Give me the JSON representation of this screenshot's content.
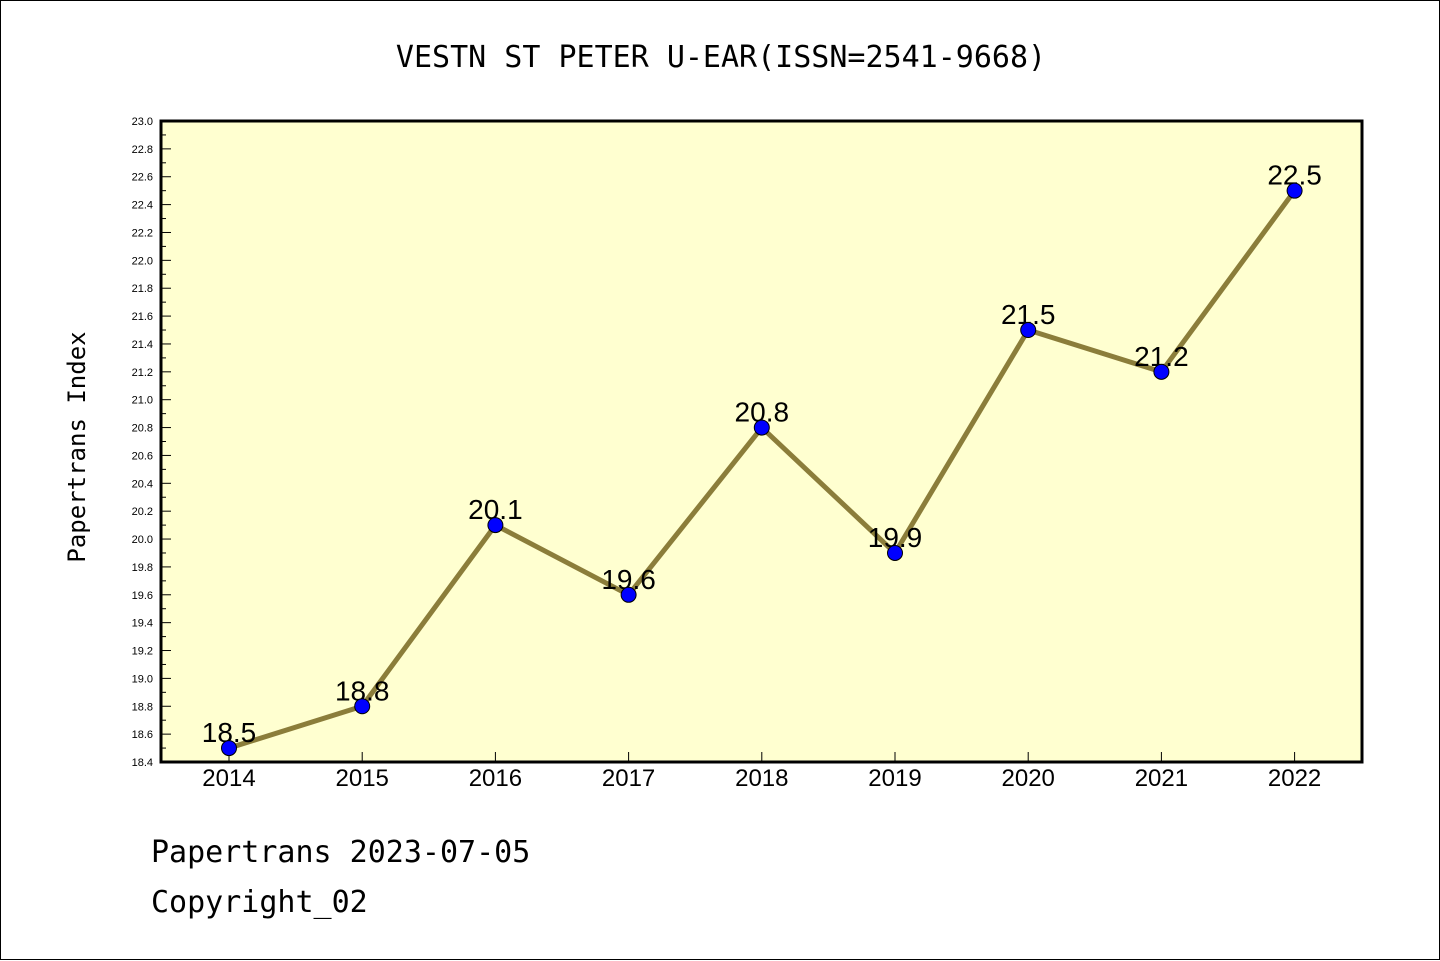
{
  "chart_data": {
    "type": "line",
    "title": "VESTN ST PETER U-EAR(ISSN=2541-9668)",
    "xlabel": "",
    "ylabel": "Papertrans Index",
    "x": [
      "2014",
      "2015",
      "2016",
      "2017",
      "2018",
      "2019",
      "2020",
      "2021",
      "2022"
    ],
    "series": [
      {
        "values": [
          18.5,
          18.8,
          20.1,
          19.6,
          20.8,
          19.9,
          21.5,
          21.2,
          22.5
        ]
      }
    ],
    "data_labels": [
      "18.5",
      "18.8",
      "20.1",
      "19.6",
      "20.8",
      "19.9",
      "21.5",
      "21.2",
      "22.5"
    ],
    "ylim": [
      18.4,
      23.0
    ],
    "yticks": [
      "18.4",
      "18.6",
      "18.8",
      "19.0",
      "19.2",
      "19.4",
      "19.6",
      "19.8",
      "20.0",
      "20.2",
      "20.4",
      "20.6",
      "20.8",
      "21.0",
      "21.2",
      "21.4",
      "21.6",
      "21.8",
      "22.0",
      "22.2",
      "22.4",
      "22.6",
      "22.8",
      "23.0"
    ],
    "grid": false,
    "legend": "none",
    "colors": {
      "plot_background": "#ffffd0",
      "line": "#8b7d3a",
      "marker": "#0000ff",
      "axes": "#000000"
    }
  },
  "footer": {
    "line1": "Papertrans 2023-07-05",
    "line2": "Copyright_02"
  }
}
